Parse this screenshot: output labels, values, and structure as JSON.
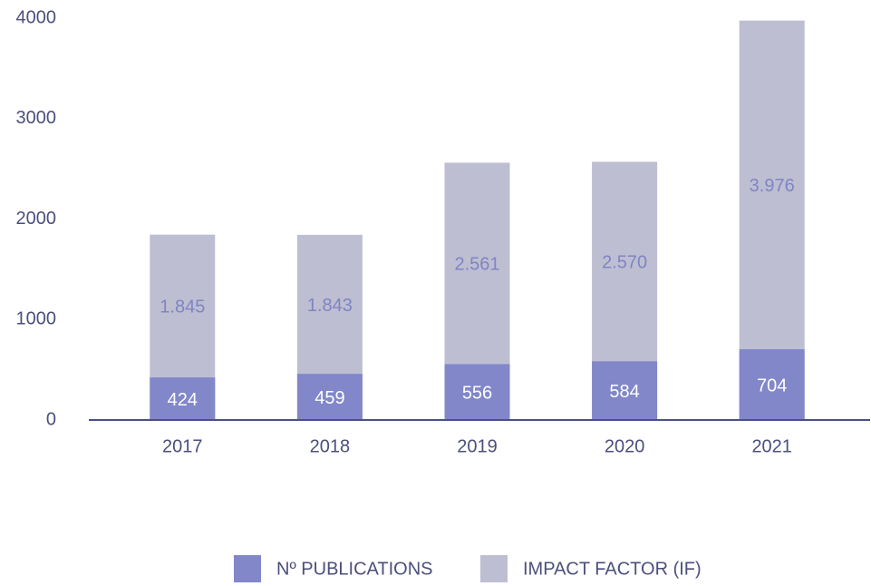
{
  "chart_data": {
    "type": "bar",
    "overlap": true,
    "categories": [
      "2017",
      "2018",
      "2019",
      "2020",
      "2021"
    ],
    "series": [
      {
        "name": "Nº PUBLICATIONS",
        "color": "#8187c9",
        "values": [
          424,
          459,
          556,
          584,
          704
        ]
      },
      {
        "name": "IMPACT FACTOR (IF)",
        "color": "#bdbed1",
        "values": [
          1845,
          1843,
          2561,
          2570,
          3976
        ],
        "value_labels": [
          "1.845",
          "1.843",
          "2.561",
          "2.570",
          "3.976"
        ]
      }
    ],
    "ylim": [
      0,
      4000
    ],
    "yticks": [
      0,
      1000,
      2000,
      3000,
      4000
    ],
    "grid": false,
    "legend": "bottom"
  }
}
